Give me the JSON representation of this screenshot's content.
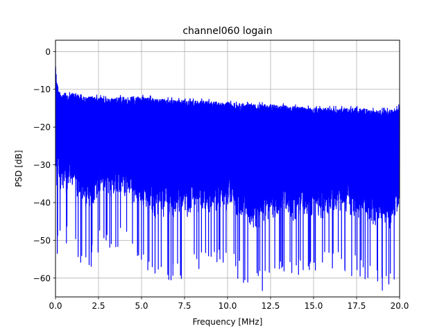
{
  "chart_data": {
    "type": "line",
    "title": "channel060 logain",
    "xlabel": "Frequency [MHz]",
    "ylabel": "PSD [dB]",
    "xlim": [
      0.0,
      20.0
    ],
    "ylim": [
      -65.0,
      3.0
    ],
    "xticks": [
      0.0,
      2.5,
      5.0,
      7.5,
      10.0,
      12.5,
      15.0,
      17.5,
      20.0
    ],
    "xtick_labels": [
      "0.0",
      "2.5",
      "5.0",
      "7.5",
      "10.0",
      "12.5",
      "15.0",
      "17.5",
      "20.0"
    ],
    "yticks": [
      0,
      -10,
      -20,
      -30,
      -40,
      -50,
      -60
    ],
    "ytick_labels": [
      "0",
      "−10",
      "−20",
      "−30",
      "−40",
      "−50",
      "−60"
    ],
    "grid": true,
    "series": [
      {
        "color": "#0000ff",
        "x": [
          0.0,
          0.05,
          0.1,
          0.15,
          0.2,
          0.3,
          0.5,
          0.75,
          1.0,
          1.5,
          2.0,
          2.5,
          3.0,
          4.0,
          5.0,
          6.0,
          7.5,
          8.5,
          10.0,
          11.5,
          12.5,
          13.75,
          15.0,
          16.25,
          17.5,
          18.5,
          19.5,
          20.0
        ],
        "upper": [
          -3,
          -6,
          -8,
          -9,
          -10,
          -11,
          -11.5,
          -11.5,
          -11,
          -12,
          -12,
          -12,
          -12.5,
          -12,
          -12,
          -12.5,
          -13,
          -13,
          -13.5,
          -14,
          -14,
          -14.5,
          -15,
          -15,
          -15,
          -15.5,
          -15.5,
          -14.5
        ],
        "lower": [
          -38,
          -50,
          -53,
          -45,
          -48,
          -48,
          -48,
          -49,
          -47,
          -54,
          -55,
          -50,
          -49,
          -49,
          -55,
          -58,
          -57,
          -56,
          -54,
          -62,
          -59,
          -58,
          -57,
          -55,
          -57,
          -60,
          -61,
          -54
        ]
      }
    ]
  }
}
